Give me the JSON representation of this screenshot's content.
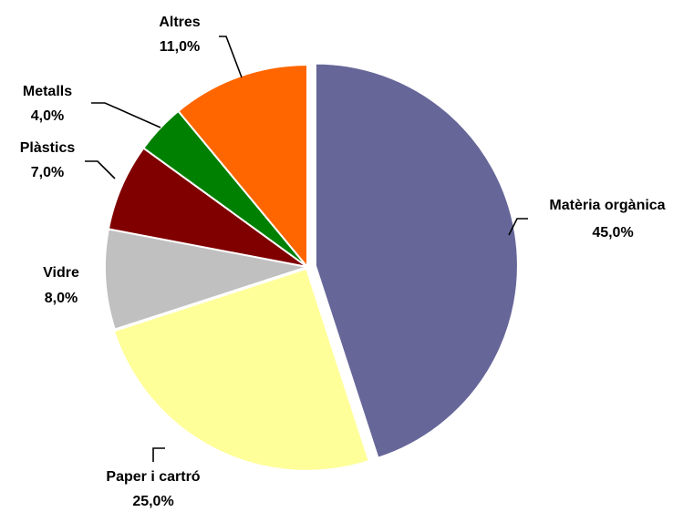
{
  "chart_data": {
    "type": "pie",
    "categories": [
      "Matèria orgànica",
      "Paper i cartró",
      "Vidre",
      "Plàstics",
      "Metalls",
      "Altres"
    ],
    "values": [
      45,
      25,
      8,
      7,
      4,
      11
    ],
    "value_labels": [
      "45,0%",
      "25,0%",
      "8,0%",
      "7,0%",
      "4,0%",
      "11,0%"
    ],
    "colors": [
      "#666699",
      "#FFFF99",
      "#C0C0C0",
      "#800000",
      "#008000",
      "#FF6600"
    ]
  }
}
